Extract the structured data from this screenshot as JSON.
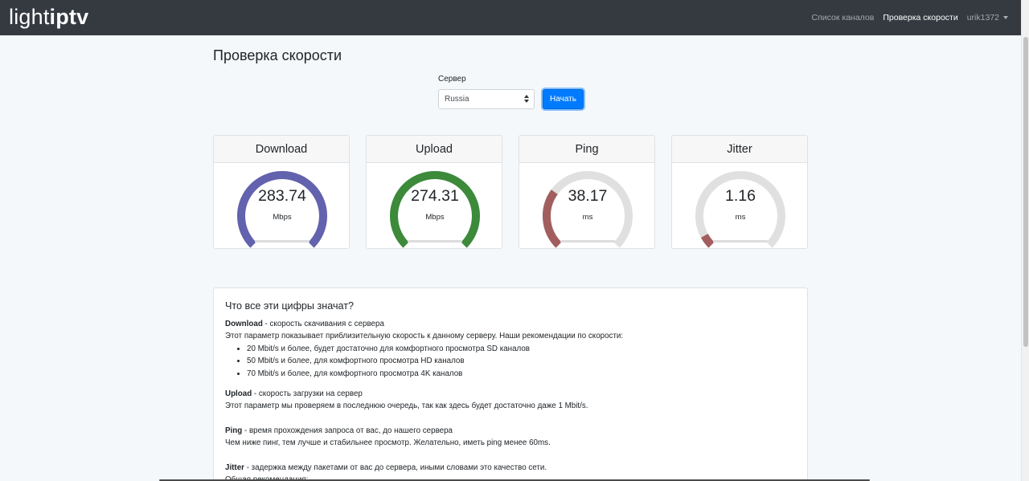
{
  "navbar": {
    "logo_light": "light",
    "logo_iptv": "iptv",
    "links": [
      {
        "label": "Список каналов",
        "active": false
      },
      {
        "label": "Проверка скорости",
        "active": true
      }
    ],
    "user": "urik1372"
  },
  "page_title": "Проверка скорости",
  "server": {
    "label": "Сервер",
    "selected": "Russia",
    "start_button": "Начать"
  },
  "gauges": [
    {
      "title": "Download",
      "value": "283.74",
      "unit": "Mbps",
      "fraction": 1.0,
      "color": "#6362ae"
    },
    {
      "title": "Upload",
      "value": "274.31",
      "unit": "Mbps",
      "fraction": 1.0,
      "color": "#3c8a3a"
    },
    {
      "title": "Ping",
      "value": "38.17",
      "unit": "ms",
      "fraction": 0.3,
      "color": "#a25e5e"
    },
    {
      "title": "Jitter",
      "value": "1.16",
      "unit": "ms",
      "fraction": 0.06,
      "color": "#a25e5e"
    }
  ],
  "info": {
    "heading": "Что все эти цифры значат?",
    "download_term": "Download",
    "download_def": " - скорость скачивания с сервера",
    "download_desc": "Этот параметр показывает приблизительную скорость к данному серверу. Наши рекомендации по скорости:",
    "download_items": [
      "20 Mbit/s и более, будет достаточно для комфортного просмотра SD каналов",
      "50 Mbit/s и более, для комфортного просмотра HD каналов",
      "70 Mbit/s и более, для комфортного просмотра 4K каналов"
    ],
    "upload_term": "Upload",
    "upload_def": " - скорость загрузки на сервер",
    "upload_desc": "Этот параметр мы проверяем в последнюю очередь, так как здесь будет достаточно даже 1 Mbit/s.",
    "ping_term": "Ping",
    "ping_def": " - время прохождения запроса от вас, до нашего сервера",
    "ping_desc": "Чем ниже пинг, тем лучше и стабильнее просмотр. Желательно, иметь ping менее 60ms.",
    "jitter_term": "Jitter",
    "jitter_def": " - задержка между пакетами от вас до сервера, иными словами это качество сети.",
    "general": "Общая рекомендация:"
  },
  "colors": {
    "navbar": "#343a40",
    "primary": "#007bff",
    "gauge_track": "#e0e0e0"
  }
}
